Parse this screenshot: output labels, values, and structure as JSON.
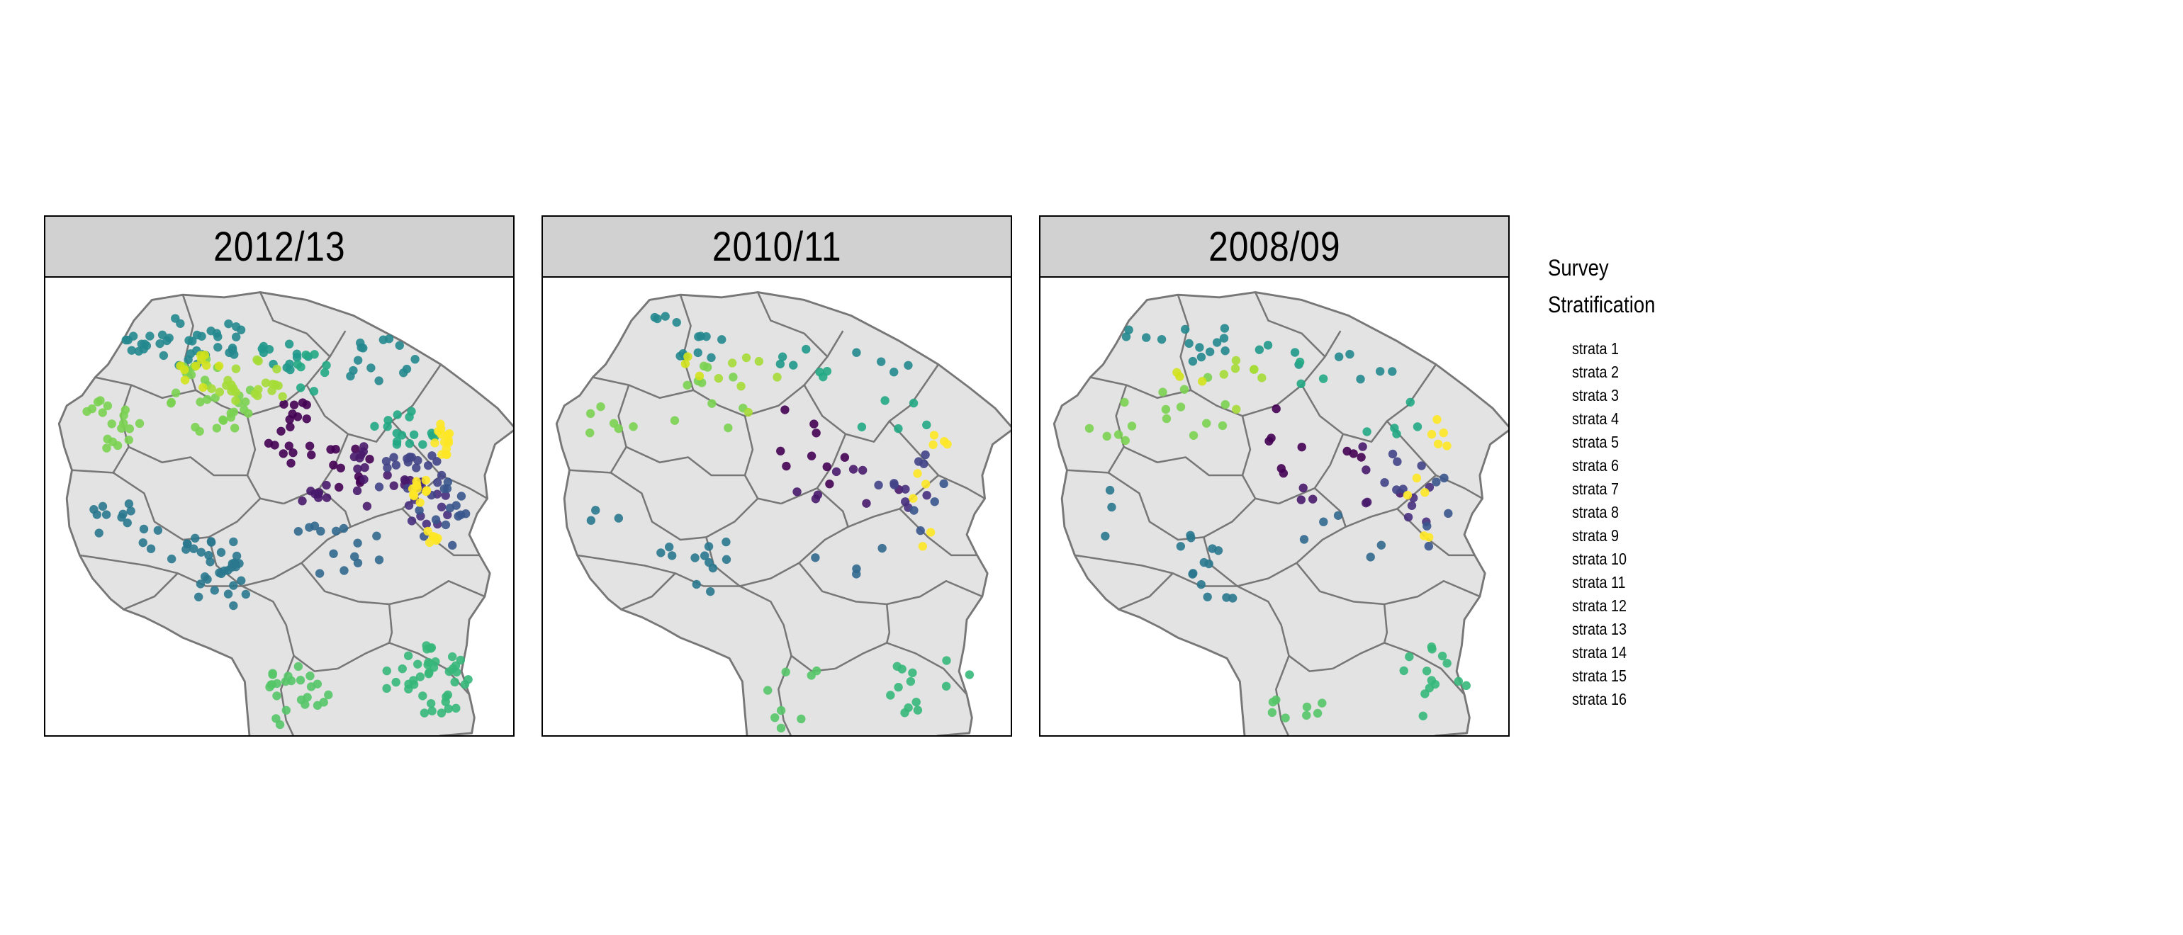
{
  "panels": [
    {
      "title": "2012/13",
      "density": 1.0
    },
    {
      "title": "2010/11",
      "density": 0.32
    },
    {
      "title": "2008/09",
      "density": 0.34
    }
  ],
  "legend": {
    "title_line1": "Survey",
    "title_line2": "Stratification",
    "items": [
      {
        "label": "strata 1",
        "color": "#440154"
      },
      {
        "label": "strata 2",
        "color": "#481a6c"
      },
      {
        "label": "strata 3",
        "color": "#472f7d"
      },
      {
        "label": "strata 4",
        "color": "#414487"
      },
      {
        "label": "strata 5",
        "color": "#39568c"
      },
      {
        "label": "strata 6",
        "color": "#31688e"
      },
      {
        "label": "strata 7",
        "color": "#2a788e"
      },
      {
        "label": "strata 8",
        "color": "#23888e"
      },
      {
        "label": "strata 9",
        "color": "#1f988b"
      },
      {
        "label": "strata 10",
        "color": "#22a884"
      },
      {
        "label": "strata 11",
        "color": "#35b779"
      },
      {
        "label": "strata 12",
        "color": "#54c568"
      },
      {
        "label": "strata 13",
        "color": "#7ad151"
      },
      {
        "label": "strata 14",
        "color": "#a5db36"
      },
      {
        "label": "strata 15",
        "color": "#d2e21b"
      },
      {
        "label": "strata 16",
        "color": "#fde725"
      }
    ]
  },
  "map_style": {
    "land_fill": "#e3e3e3",
    "border_color": "#777777",
    "point_opacity": 0.9
  }
}
